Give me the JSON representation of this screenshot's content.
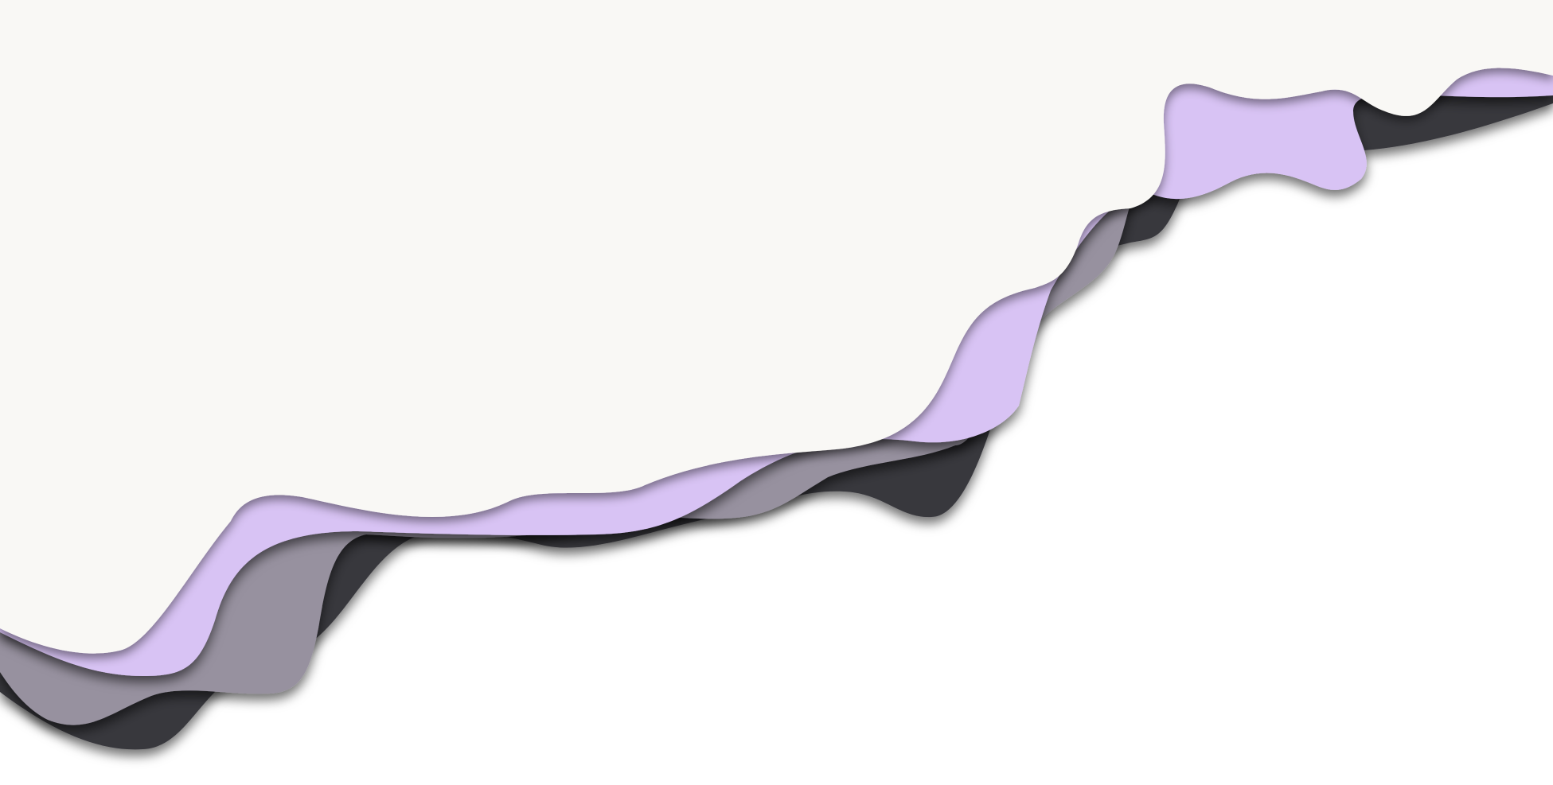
{
  "colors": {
    "background": "#ffffff",
    "layer_dark": "#38373e",
    "layer_gray": "#97919f",
    "layer_lavender": "#d8c3f4",
    "layer_cream": "#f9f8f5",
    "shadow": "#000000"
  }
}
